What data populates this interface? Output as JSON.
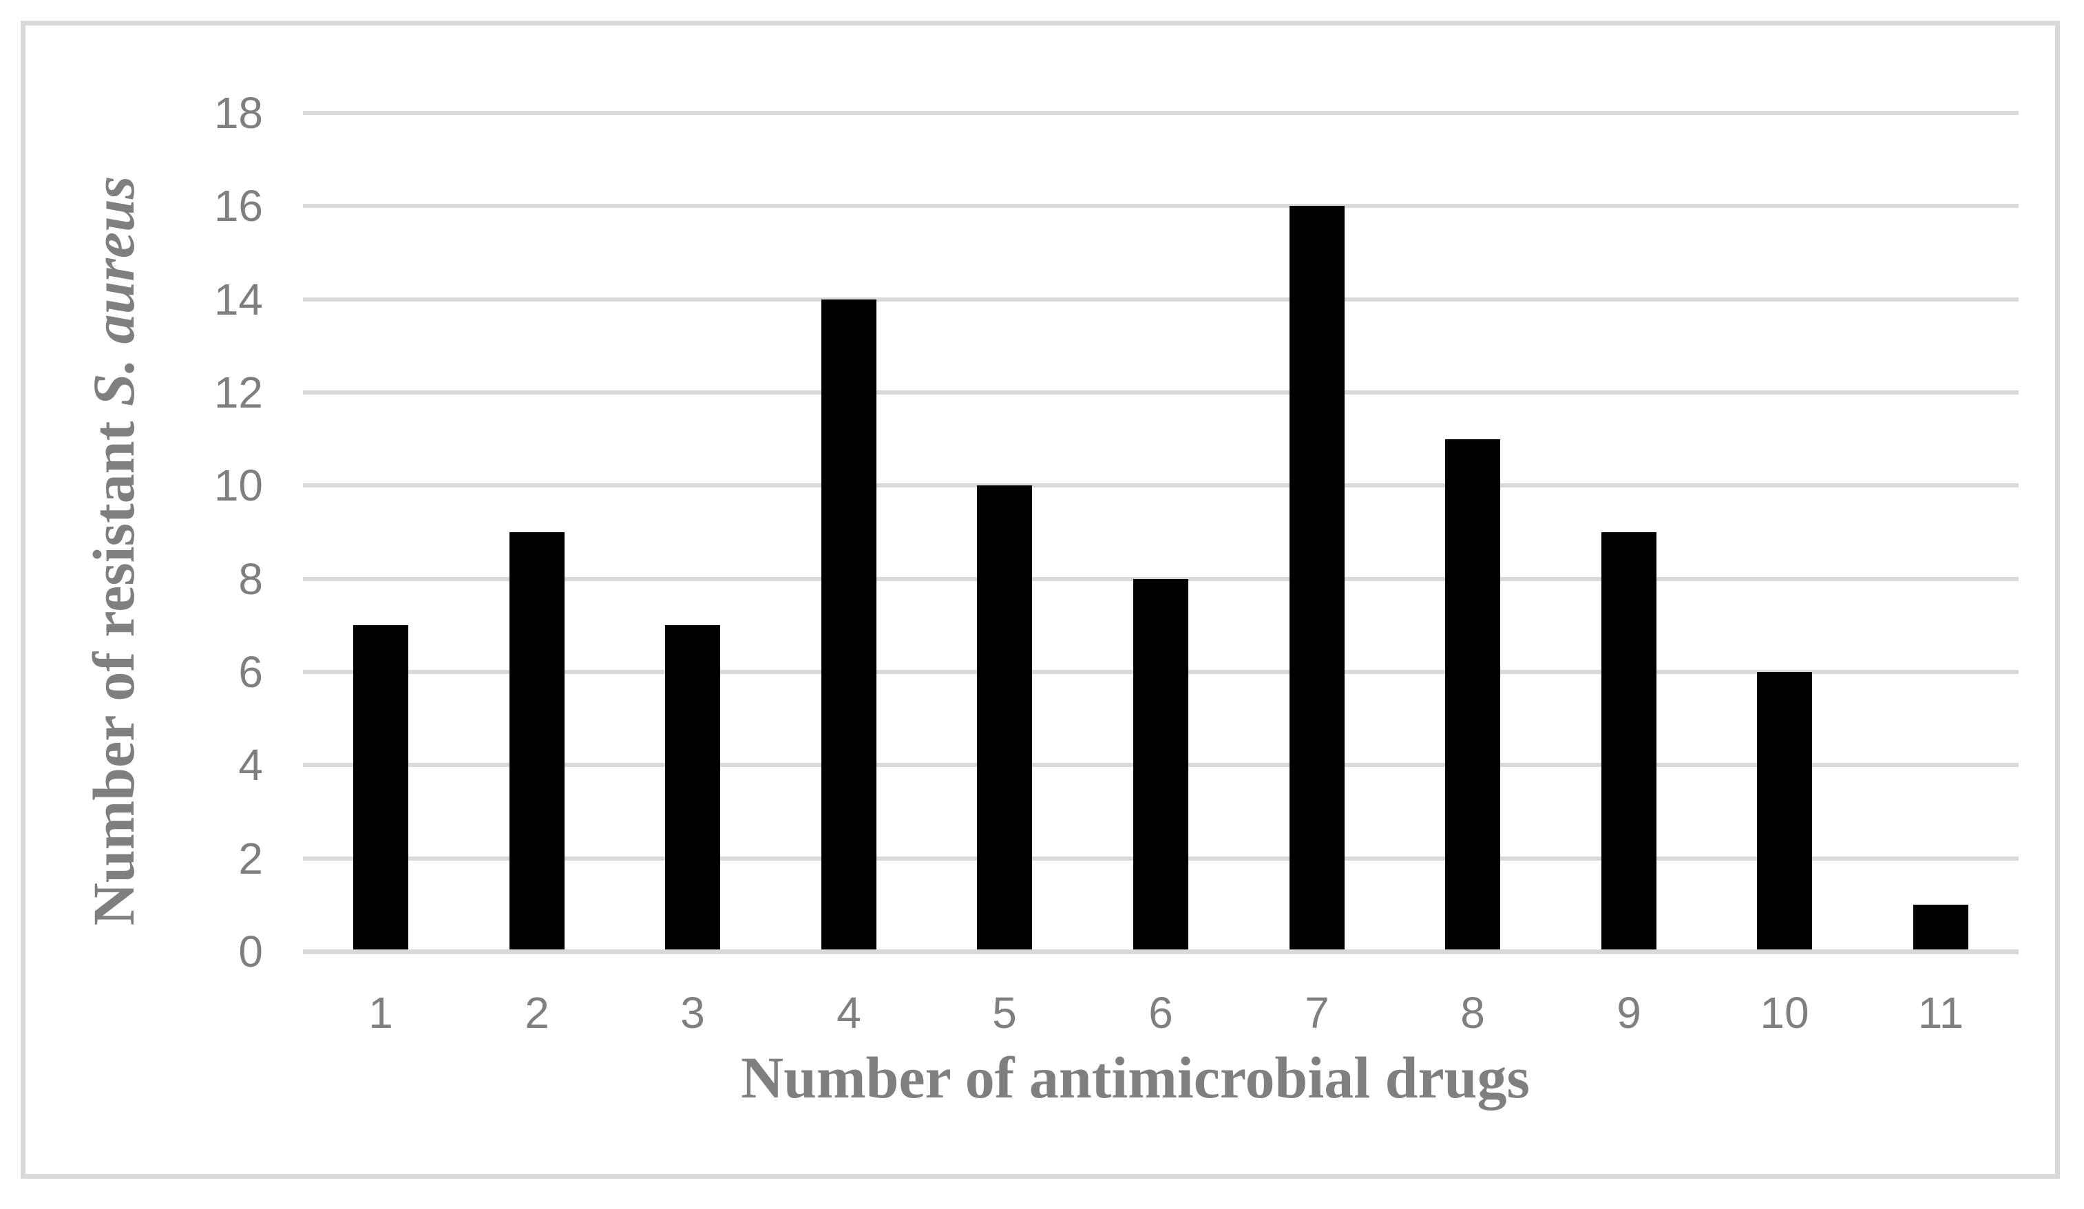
{
  "figure": {
    "background_color": "#ffffff",
    "frame_border_color": "#d9d9d9"
  },
  "chart_data": {
    "type": "bar",
    "title": "",
    "xlabel": "Number of antimicrobial drugs",
    "ylabel": "Number of resistant S. aureus",
    "ylabel_regular_part": "Number of resistant ",
    "ylabel_italic_part": "S. aureus",
    "categories": [
      "1",
      "2",
      "3",
      "4",
      "5",
      "6",
      "7",
      "8",
      "9",
      "10",
      "11"
    ],
    "values": [
      7,
      9,
      7,
      14,
      10,
      8,
      16,
      11,
      9,
      6,
      1
    ],
    "y_tick_labels": [
      "0",
      "2",
      "4",
      "6",
      "8",
      "10",
      "12",
      "14",
      "16",
      "18"
    ],
    "y_ticks": [
      0,
      2,
      4,
      6,
      8,
      10,
      12,
      14,
      16,
      18
    ],
    "ylim": [
      0,
      18
    ],
    "grid": "horizontal",
    "legend_position": "none",
    "bar_color": "#000000",
    "gridline_color": "#d9d9d9",
    "axis_line_color": "#d9d9d9",
    "tick_label_color": "#7f7f7f",
    "axis_title_color": "#7f7f7f"
  }
}
